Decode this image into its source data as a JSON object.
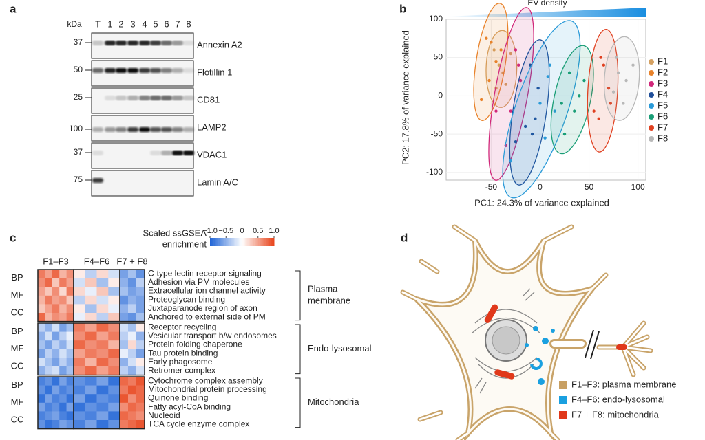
{
  "panel_labels": [
    "a",
    "b",
    "c",
    "d"
  ],
  "blot": {
    "kda_header": "kDa",
    "lanes": [
      "T",
      "1",
      "2",
      "3",
      "4",
      "5",
      "6",
      "7",
      "8"
    ],
    "rows": [
      {
        "kda": 37,
        "label": "Annexin A2"
      },
      {
        "kda": 50,
        "label": "Flotillin 1"
      },
      {
        "kda": 25,
        "label": "CD81"
      },
      {
        "kda": 100,
        "label": "LAMP2"
      },
      {
        "kda": 37,
        "label": "VDAC1"
      },
      {
        "kda": 75,
        "label": "Lamin A/C"
      }
    ]
  },
  "chart_data": {
    "type": "scatter",
    "title": "EV density",
    "xlabel": "PC1: 24.3% of variance explained",
    "ylabel": "PC2: 17.8% of variance explained",
    "xlim": [
      -96,
      108
    ],
    "ylim": [
      -110,
      107
    ],
    "xticks": [
      -50,
      0,
      50,
      100
    ],
    "yticks": [
      -100,
      -50,
      0,
      50,
      100
    ],
    "grid": true,
    "legend": "right",
    "ellipses": true,
    "series": [
      {
        "name": "F1",
        "color": "#d4a060",
        "x": [
          -47,
          -42,
          -38,
          -45,
          -30,
          -35
        ],
        "values": [
          60,
          40,
          30,
          10,
          55,
          15
        ]
      },
      {
        "name": "F2",
        "color": "#e8822a",
        "x": [
          -55,
          -50,
          -45,
          -60,
          -52,
          -40
        ],
        "values": [
          75,
          70,
          45,
          -5,
          20,
          60
        ]
      },
      {
        "name": "F3",
        "color": "#d1287a",
        "x": [
          -25,
          -22,
          -30,
          -45,
          -20,
          -35
        ],
        "values": [
          60,
          40,
          -20,
          -20,
          20,
          -65
        ]
      },
      {
        "name": "F4",
        "color": "#1f4e99",
        "x": [
          -10,
          -5,
          -15,
          -2,
          -25,
          -8
        ],
        "values": [
          40,
          -30,
          -40,
          10,
          -60,
          -50
        ]
      },
      {
        "name": "F5",
        "color": "#2a9ad8",
        "x": [
          10,
          5,
          0,
          15,
          -30,
          8
        ],
        "values": [
          40,
          -55,
          -10,
          -20,
          -85,
          25
        ]
      },
      {
        "name": "F6",
        "color": "#1a9e77",
        "x": [
          30,
          25,
          35,
          40,
          22,
          45
        ],
        "values": [
          30,
          -50,
          -20,
          0,
          -10,
          20
        ]
      },
      {
        "name": "F7",
        "color": "#e04020",
        "x": [
          65,
          55,
          60,
          70,
          62,
          72
        ],
        "values": [
          40,
          -20,
          -30,
          10,
          50,
          -10
        ]
      },
      {
        "name": "F8",
        "color": "#b8b8b8",
        "x": [
          80,
          88,
          75,
          95,
          85,
          78
        ],
        "values": [
          30,
          20,
          5,
          40,
          -10,
          50
        ]
      }
    ]
  },
  "heatmap": {
    "legend_title_lines": [
      "Scaled ssGSEA",
      "enrichment"
    ],
    "color_lim": [
      -1,
      1
    ],
    "color_ticks": [
      {
        "value": -1,
        "label": "−1.0"
      },
      {
        "value": -0.5,
        "label": "−0.5"
      },
      0,
      0.5,
      {
        "value": 1,
        "label": "1.0"
      }
    ],
    "groups": [
      "F1–F3",
      "F4–F6",
      "F7 + F8"
    ],
    "ontologies": [
      "BP",
      "MF",
      "CC"
    ],
    "blocks": [
      {
        "name_lines": [
          "Plasma",
          "membrane"
        ],
        "terms": [
          {
            "label": "C-type lectin receptor signaling",
            "values": [
              [
                0.7,
                0.5,
                0.8,
                0.4,
                0.6
              ],
              [
                0.1,
                -0.3,
                0.2,
                -0.2
              ],
              [
                -0.6,
                -0.4,
                -0.7
              ]
            ]
          },
          {
            "label": "Adhesion via PM molecules",
            "values": [
              [
                0.6,
                0.8,
                0.3,
                0.7,
                0.5
              ],
              [
                -0.2,
                0.3,
                -0.4,
                0.1
              ],
              [
                -0.5,
                -0.7,
                -0.3
              ]
            ]
          },
          {
            "label": "Extracellular ion channel activity",
            "values": [
              [
                0.5,
                0.3,
                0.6,
                0.2,
                0.7
              ],
              [
                0.2,
                -0.1,
                0.3,
                -0.4
              ],
              [
                -0.4,
                -0.6,
                -0.5
              ]
            ]
          },
          {
            "label": "Proteoglycan binding",
            "values": [
              [
                0.4,
                0.7,
                0.5,
                0.6,
                0.3
              ],
              [
                -0.3,
                0.2,
                -0.2,
                0.1
              ],
              [
                -0.7,
                -0.5,
                -0.6
              ]
            ]
          },
          {
            "label": "Juxtaparanode region of axon",
            "values": [
              [
                0.3,
                0.5,
                0.7,
                0.4,
                0.6
              ],
              [
                0.1,
                -0.4,
                0.2,
                -0.1
              ],
              [
                -0.5,
                -0.3,
                -0.6
              ]
            ]
          },
          {
            "label": "Anchored to external side of PM",
            "values": [
              [
                0.8,
                0.4,
                0.6,
                0.5,
                0.7
              ],
              [
                -0.1,
                0.2,
                -0.3,
                0.3
              ],
              [
                -0.6,
                -0.7,
                -0.4
              ]
            ]
          }
        ]
      },
      {
        "name_lines": [
          "Endo-lysosomal"
        ],
        "terms": [
          {
            "label": "Receptor recycling",
            "values": [
              [
                -0.3,
                -0.5,
                -0.2,
                -0.6,
                -0.4
              ],
              [
                0.7,
                0.5,
                0.8,
                0.6
              ],
              [
                -0.2,
                -0.4,
                0.1
              ]
            ]
          },
          {
            "label": "Vesicular transport b/w endosomes",
            "values": [
              [
                -0.5,
                -0.2,
                -0.6,
                -0.3,
                -0.1
              ],
              [
                0.6,
                0.8,
                0.5,
                0.7
              ],
              [
                -0.3,
                -0.1,
                -0.5
              ]
            ]
          },
          {
            "label": "Protein folding chaperone",
            "values": [
              [
                -0.4,
                -0.6,
                -0.3,
                -0.5,
                -0.2
              ],
              [
                0.8,
                0.6,
                0.7,
                0.4
              ],
              [
                -0.4,
                0.2,
                -0.3
              ]
            ]
          },
          {
            "label": "Tau protein binding",
            "values": [
              [
                -0.6,
                -0.3,
                -0.5,
                -0.2,
                -0.4
              ],
              [
                0.5,
                0.7,
                0.6,
                0.8
              ],
              [
                -0.1,
                -0.3,
                -0.6
              ]
            ]
          },
          {
            "label": "Early phagosome",
            "values": [
              [
                -0.2,
                -0.4,
                -0.6,
                -0.3,
                -0.5
              ],
              [
                0.7,
                0.4,
                0.8,
                0.6
              ],
              [
                -0.5,
                -0.2,
                0.1
              ]
            ]
          },
          {
            "label": "Retromer complex",
            "values": [
              [
                -0.5,
                -0.3,
                -0.2,
                -0.6,
                -0.4
              ],
              [
                0.6,
                0.8,
                0.5,
                0.7
              ],
              [
                -0.3,
                -0.5,
                -0.2
              ]
            ]
          }
        ]
      },
      {
        "name_lines": [
          "Mitochondria"
        ],
        "terms": [
          {
            "label": "Cytochrome complex assembly",
            "values": [
              [
                -0.8,
                -0.7,
                -0.9,
                -0.6,
                -0.8
              ],
              [
                -0.7,
                -0.8,
                -0.6,
                -0.9
              ],
              [
                0.8,
                0.7,
                0.9
              ]
            ]
          },
          {
            "label": "Mitochondrial protein processing",
            "values": [
              [
                -0.7,
                -0.9,
                -0.6,
                -0.8,
                -0.7
              ],
              [
                -0.8,
                -0.6,
                -0.9,
                -0.7
              ],
              [
                0.7,
                0.9,
                0.8
              ]
            ]
          },
          {
            "label": "Quinone binding",
            "values": [
              [
                -0.9,
                -0.6,
                -0.8,
                -0.7,
                -0.9
              ],
              [
                -0.6,
                -0.9,
                -0.7,
                -0.8
              ],
              [
                0.9,
                0.6,
                0.8
              ]
            ]
          },
          {
            "label": "Fatty acyl-CoA binding",
            "values": [
              [
                -0.6,
                -0.8,
                -0.7,
                -0.9,
                -0.6
              ],
              [
                -0.9,
                -0.7,
                -0.8,
                -0.6
              ],
              [
                0.6,
                0.8,
                0.7
              ]
            ]
          },
          {
            "label": "Nucleoid",
            "values": [
              [
                -0.8,
                -0.7,
                -0.6,
                -0.8,
                -0.9
              ],
              [
                -0.7,
                -0.8,
                -0.6,
                -0.9
              ],
              [
                0.8,
                0.7,
                0.6
              ]
            ]
          },
          {
            "label": "TCA cycle enzyme complex",
            "values": [
              [
                -0.7,
                -0.9,
                -0.8,
                -0.6,
                -0.7
              ],
              [
                -0.8,
                -0.6,
                -0.9,
                -0.7
              ],
              [
                0.7,
                0.8,
                0.9
              ]
            ]
          }
        ]
      }
    ]
  },
  "diagram": {
    "legend": [
      {
        "label": "F1–F3: plasma membrane",
        "color": "#c8a063"
      },
      {
        "label": "F4–F6: endo-lysosomal",
        "color": "#1aa0e0"
      },
      {
        "label": "F7 + F8: mitochondria",
        "color": "#e0381a"
      }
    ]
  }
}
